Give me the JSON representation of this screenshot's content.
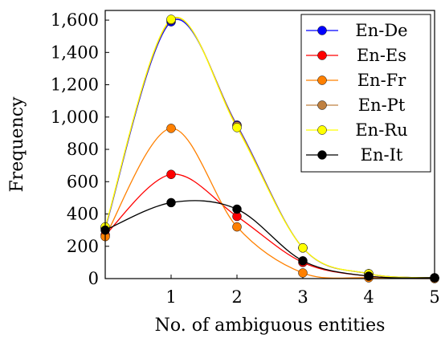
{
  "chart_data": {
    "type": "line",
    "title": "",
    "xlabel": "No. of ambiguous entities",
    "ylabel": "Frequency",
    "x": [
      0,
      1,
      2,
      3,
      4,
      5
    ],
    "xticks": [
      1,
      2,
      3,
      4,
      5
    ],
    "xtick_labels": [
      "1",
      "2",
      "3",
      "4",
      "5"
    ],
    "yticks": [
      0,
      200,
      400,
      600,
      800,
      1000,
      1200,
      1400,
      1600
    ],
    "ytick_labels": [
      "0",
      "200",
      "400",
      "600",
      "800",
      "1,000",
      "1,200",
      "1,400",
      "1,600"
    ],
    "xlim": [
      0,
      5
    ],
    "ylim": [
      0,
      1660
    ],
    "grid": false,
    "legend_position": "top-right",
    "smooth": true,
    "series": [
      {
        "name": "En-De",
        "color": "#0000ff",
        "values": [
          310,
          1590,
          950,
          190,
          30,
          5
        ]
      },
      {
        "name": "En-Es",
        "color": "#ff0000",
        "values": [
          270,
          645,
          385,
          100,
          15,
          2
        ]
      },
      {
        "name": "En-Fr",
        "color": "#ff8000",
        "values": [
          260,
          930,
          320,
          35,
          5,
          0
        ]
      },
      {
        "name": "En-Pt",
        "color": "#bf8040",
        "values": [
          315,
          1600,
          945,
          190,
          30,
          5
        ]
      },
      {
        "name": "En-Ru",
        "color": "#ffff00",
        "values": [
          320,
          1605,
          935,
          190,
          30,
          5
        ]
      },
      {
        "name": "En-It",
        "color": "#000000",
        "values": [
          300,
          470,
          430,
          110,
          15,
          5
        ]
      }
    ]
  }
}
